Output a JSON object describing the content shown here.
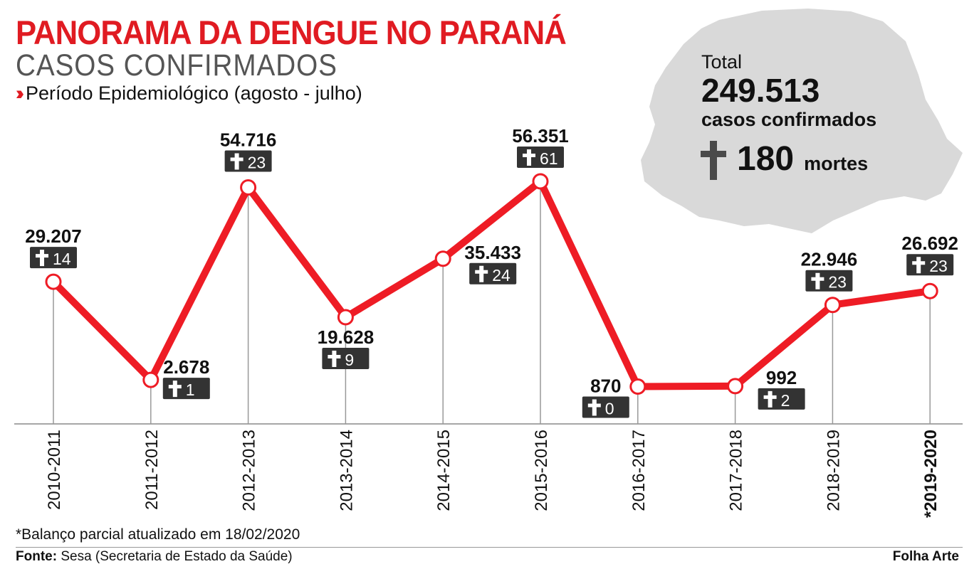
{
  "header": {
    "title": "PANORAMA DA DENGUE NO PARANÁ",
    "subtitle": "CASOS CONFIRMADOS",
    "period": "Período Epidemiológico (agosto - julho)"
  },
  "summary": {
    "total_label": "Total",
    "total_value": "249.513",
    "total_cases_label": "casos confirmados",
    "deaths_value": "180",
    "deaths_label": "mortes"
  },
  "chart_data": {
    "type": "line",
    "categories": [
      "2010-2011",
      "2011-2012",
      "2012-2013",
      "2013-2014",
      "2014-2015",
      "2015-2016",
      "2016-2017",
      "2017-2018",
      "2018-2019",
      "*2019-2020"
    ],
    "cases": [
      29207,
      2678,
      54716,
      19628,
      35433,
      56351,
      870,
      992,
      22946,
      26692
    ],
    "case_labels": [
      "29.207",
      "2.678",
      "54.716",
      "19.628",
      "35.433",
      "56.351",
      "870",
      "992",
      "22.946",
      "26.692"
    ],
    "deaths": [
      14,
      1,
      23,
      9,
      24,
      61,
      0,
      2,
      23,
      23
    ],
    "line_color": "#ee1c25",
    "death_badge_color": "#333333"
  },
  "footer": {
    "note": "*Balanço parcial atualizado em 18/02/2020",
    "source_label": "Fonte:",
    "source_text": "Sesa (Secretaria de Estado da Saúde)",
    "credit": "Folha Arte"
  }
}
